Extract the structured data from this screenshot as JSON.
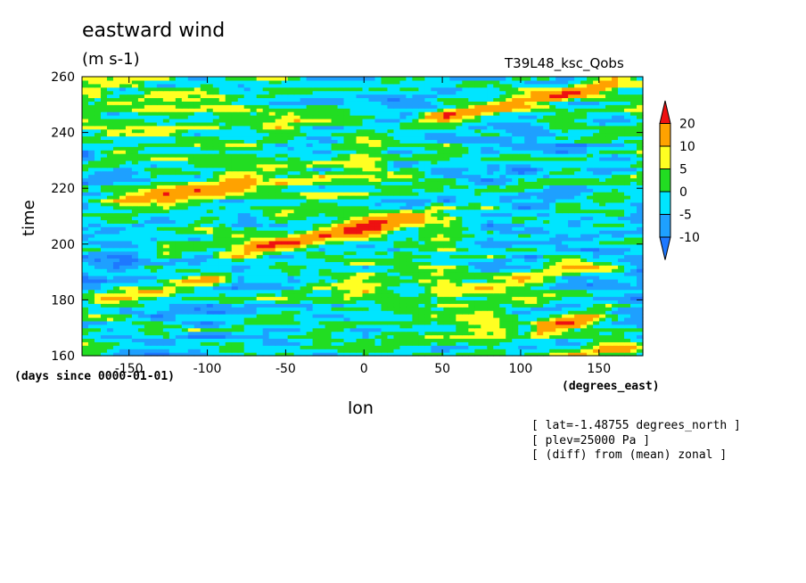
{
  "chart_data": {
    "type": "heatmap",
    "title": "eastward wind",
    "units": "(m s-1)",
    "run_label": "T39L48_ksc_Qobs",
    "xlabel": "lon",
    "x_units": "(degrees_east)",
    "ylabel": "time",
    "y_units": "(days since 0000-01-01)",
    "xlim": [
      -180,
      178
    ],
    "ylim": [
      160,
      260
    ],
    "x_ticks": [
      -150,
      -100,
      -50,
      0,
      50,
      100,
      150
    ],
    "y_ticks": [
      160,
      180,
      200,
      220,
      240,
      260
    ],
    "colorbar": {
      "levels": [
        -10,
        -5,
        0,
        5,
        10,
        20
      ],
      "level_labels": [
        "-10",
        "-5",
        "0",
        "5",
        "10",
        "20"
      ],
      "colors": [
        "#1e78ff",
        "#1ea0ff",
        "#00e5ff",
        "#22dd22",
        "#ffff22",
        "#ffa200",
        "#ee1111"
      ],
      "extend": "both"
    },
    "notes": [
      "[ lat=-1.48755 degrees_north ]",
      "[ plev=25000 Pa ]",
      "[ (diff) from (mean) zonal ]"
    ],
    "features": [
      {
        "lon_start": 20,
        "lon_end": 178,
        "t_start": 243,
        "t_end": 259,
        "peak": 22
      },
      {
        "lon_start": -100,
        "lon_end": 50,
        "t_start": 196,
        "t_end": 211,
        "peak": 21
      },
      {
        "lon_start": -180,
        "lon_end": -60,
        "t_start": 214,
        "t_end": 223,
        "peak": 13
      },
      {
        "lon_start": -180,
        "lon_end": -80,
        "t_start": 180,
        "t_end": 188,
        "peak": 15
      },
      {
        "lon_start": 100,
        "lon_end": 160,
        "t_start": 168,
        "t_end": 176,
        "peak": 16
      },
      {
        "lon_start": 130,
        "lon_end": 178,
        "t_start": 160,
        "t_end": 163,
        "peak": 11
      },
      {
        "lon_start": 60,
        "lon_end": 178,
        "t_start": 185,
        "t_end": 195,
        "peak": 10
      }
    ]
  }
}
